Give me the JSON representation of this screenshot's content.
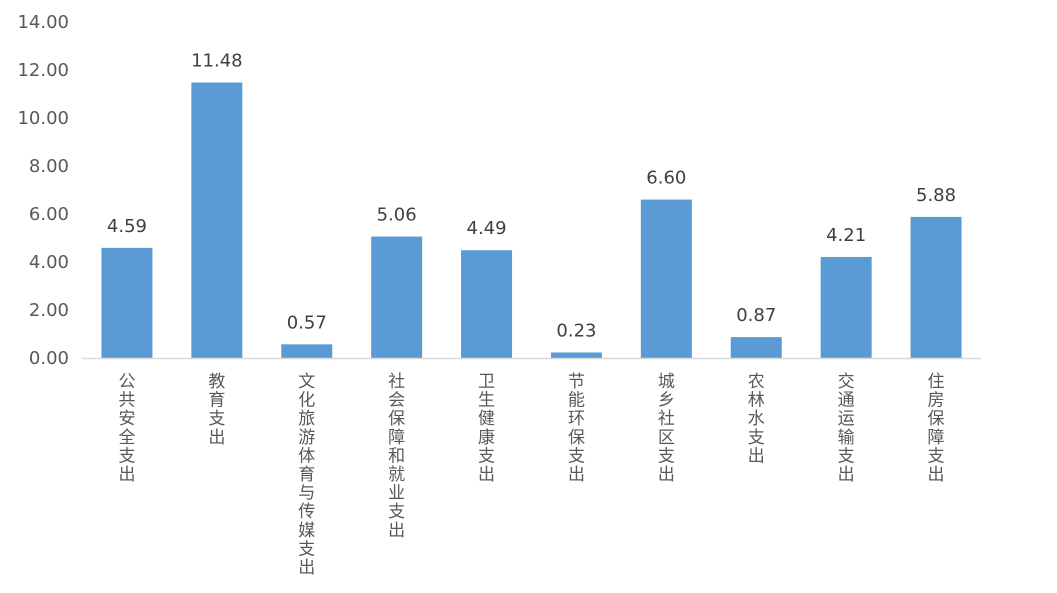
{
  "chart_data": {
    "type": "bar",
    "categories": [
      "公共安全支出",
      "教育支出",
      "文化旅游体育与传媒支出",
      "社会保障和就业支出",
      "卫生健康支出",
      "节能环保支出",
      "城乡社区支出",
      "农林水支出",
      "交通运输支出",
      "住房保障支出"
    ],
    "values": [
      4.59,
      11.48,
      0.57,
      5.06,
      4.49,
      0.23,
      6.6,
      0.87,
      4.21,
      5.88
    ],
    "data_labels": [
      "4.59",
      "11.48",
      "0.57",
      "5.06",
      "4.49",
      "0.23",
      "6.60",
      "0.87",
      "4.21",
      "5.88"
    ],
    "y_ticks": [
      0,
      2,
      4,
      6,
      8,
      10,
      12,
      14
    ],
    "y_tick_labels": [
      "0.00",
      "2.00",
      "4.00",
      "6.00",
      "8.00",
      "10.00",
      "12.00",
      "14.00"
    ],
    "ylim": [
      0,
      14
    ],
    "title": "",
    "xlabel": "",
    "ylabel": "",
    "grid": false,
    "legend": "none",
    "bar_color": "#5B9BD5",
    "axis_color": "#D9D9D9"
  }
}
